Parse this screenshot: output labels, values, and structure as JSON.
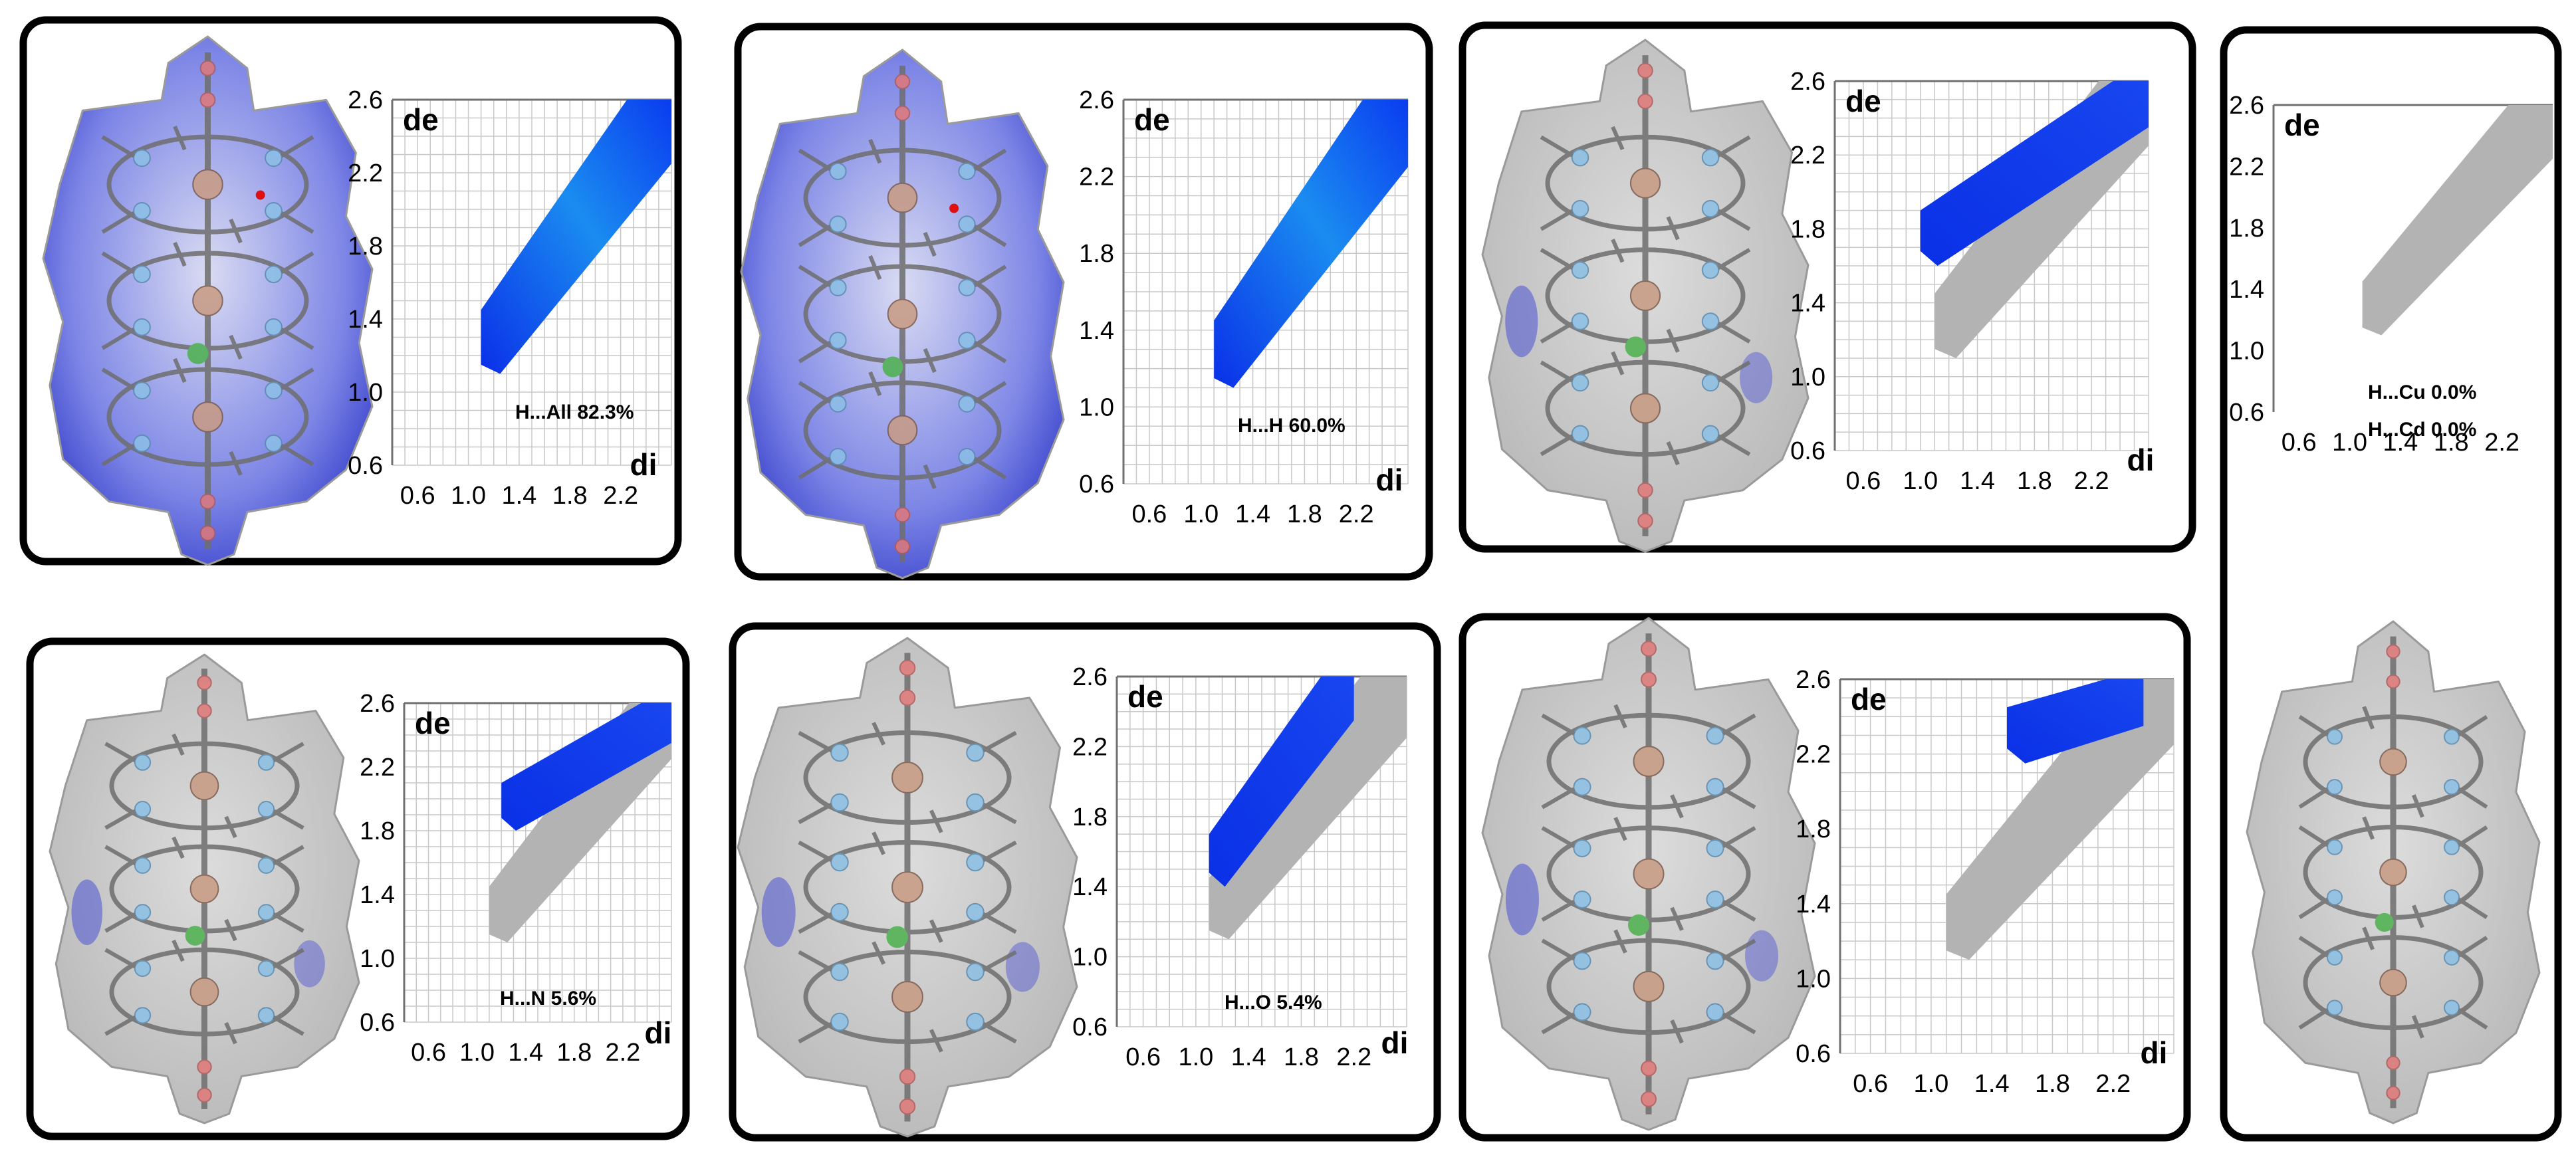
{
  "colors": {
    "frame": "#000000",
    "fingerprint_highlight": "#0a3cf0",
    "fingerprint_full": "#b3b3b3",
    "surface_gray": "#c8c8c8",
    "surface_blue": "#4b52d2",
    "grid": "#c8c8c8",
    "oxygen_atom": "#e07878",
    "nitrogen_atom": "#8cc0e6",
    "metal_atom": "#c89a82",
    "chloride_atom": "#4cb04c"
  },
  "icons": {
    "surface": "hirshfeld-surface-icon",
    "molecule": "molecule-icon"
  },
  "chart_data": [
    {
      "type": "scatter",
      "title": "",
      "xlabel": "di",
      "ylabel": "de",
      "xlim": [
        0.4,
        2.6
      ],
      "ylim": [
        0.6,
        2.6
      ],
      "xticks": [
        "0.6",
        "1.0",
        "1.4",
        "1.8",
        "2.2"
      ],
      "yticks": [
        "2.6",
        "2.2",
        "1.8",
        "1.4",
        "1.0",
        "0.6"
      ],
      "grid": true,
      "surface_coloring": "dnorm",
      "full_region": {
        "x_min": 1.1,
        "x_max": 2.6,
        "y_min": 1.1,
        "y_max": 2.6
      },
      "highlight_region": {
        "x_min": 1.1,
        "x_max": 2.6,
        "y_min": 1.1,
        "y_max": 2.6
      },
      "annotations": [
        "H...All 82.3%"
      ],
      "contact": "H...All",
      "percent": 82.3
    },
    {
      "type": "scatter",
      "title": "",
      "xlabel": "di",
      "ylabel": "de",
      "xlim": [
        0.4,
        2.6
      ],
      "ylim": [
        0.6,
        2.6
      ],
      "xticks": [
        "0.6",
        "1.0",
        "1.4",
        "1.8",
        "2.2"
      ],
      "yticks": [
        "2.6",
        "2.2",
        "1.8",
        "1.4",
        "1.0",
        "0.6"
      ],
      "grid": true,
      "surface_coloring": "dnorm",
      "full_region": {
        "x_min": 1.1,
        "x_max": 2.6,
        "y_min": 1.1,
        "y_max": 2.6
      },
      "highlight_region": {
        "x_min": 1.1,
        "x_max": 2.6,
        "y_min": 1.1,
        "y_max": 2.6
      },
      "annotations": [
        "H...H 60.0%"
      ],
      "contact": "H...H",
      "percent": 60.0
    },
    {
      "type": "scatter",
      "title": "",
      "xlabel": "di",
      "ylabel": "de",
      "xlim": [
        0.4,
        2.6
      ],
      "ylim": [
        0.6,
        2.6
      ],
      "xticks": [
        "0.6",
        "1.0",
        "1.4",
        "1.8",
        "2.2"
      ],
      "yticks": [
        "2.6",
        "2.2",
        "1.8",
        "1.4",
        "1.0",
        "0.6"
      ],
      "grid": true,
      "surface_coloring": "partial",
      "full_region": {
        "x_min": 1.1,
        "x_max": 2.6,
        "y_min": 1.1,
        "y_max": 2.6
      },
      "highlight_region": {
        "x_min": 1.0,
        "x_max": 2.6,
        "y_min": 1.6,
        "y_max": 2.6
      },
      "annotations": [],
      "contact": "",
      "percent": null
    },
    {
      "type": "scatter",
      "title": "",
      "xlabel": "",
      "ylabel": "de",
      "xlim": [
        0.4,
        2.6
      ],
      "ylim": [
        0.6,
        2.6
      ],
      "xticks": [
        "0.6",
        "1.0",
        "1.4",
        "1.8",
        "2.2"
      ],
      "yticks": [
        "2.6",
        "2.2",
        "1.8",
        "1.4",
        "1.0",
        "0.6"
      ],
      "grid": false,
      "surface_coloring": "gray",
      "full_region": {
        "x_min": 1.1,
        "x_max": 2.6,
        "y_min": 1.1,
        "y_max": 2.6
      },
      "highlight_region": null,
      "annotations": [
        "H...Cu 0.0%",
        "H...Cd 0.0%"
      ],
      "contact": "H...Cu / H...Cd",
      "percent": 0.0
    },
    {
      "type": "scatter",
      "title": "",
      "xlabel": "di",
      "ylabel": "de",
      "xlim": [
        0.4,
        2.6
      ],
      "ylim": [
        0.6,
        2.6
      ],
      "xticks": [
        "0.6",
        "1.0",
        "1.4",
        "1.8",
        "2.2"
      ],
      "yticks": [
        "2.6",
        "2.2",
        "1.8",
        "1.4",
        "1.0",
        "0.6"
      ],
      "grid": true,
      "surface_coloring": "partial",
      "full_region": {
        "x_min": 1.1,
        "x_max": 2.6,
        "y_min": 1.1,
        "y_max": 2.6
      },
      "highlight_region": {
        "x_min": 1.2,
        "x_max": 2.6,
        "y_min": 1.8,
        "y_max": 2.6
      },
      "annotations": [
        "H...N 5.6%"
      ],
      "contact": "H...N",
      "percent": 5.6
    },
    {
      "type": "scatter",
      "title": "",
      "xlabel": "di",
      "ylabel": "de",
      "xlim": [
        0.4,
        2.6
      ],
      "ylim": [
        0.6,
        2.6
      ],
      "xticks": [
        "0.6",
        "1.0",
        "1.4",
        "1.8",
        "2.2"
      ],
      "yticks": [
        "2.6",
        "2.2",
        "1.8",
        "1.4",
        "1.0",
        "0.6"
      ],
      "grid": true,
      "surface_coloring": "partial",
      "full_region": {
        "x_min": 1.1,
        "x_max": 2.6,
        "y_min": 1.1,
        "y_max": 2.6
      },
      "highlight_region": {
        "x_min": 1.1,
        "x_max": 2.2,
        "y_min": 1.4,
        "y_max": 2.6
      },
      "annotations": [
        "H...O 5.4%"
      ],
      "contact": "H...O",
      "percent": 5.4
    },
    {
      "type": "scatter",
      "title": "",
      "xlabel": "di",
      "ylabel": "de",
      "xlim": [
        0.4,
        2.6
      ],
      "ylim": [
        0.6,
        2.6
      ],
      "xticks": [
        "0.6",
        "1.0",
        "1.4",
        "1.8",
        "2.2"
      ],
      "yticks": [
        "2.6",
        "2.2",
        "1.8",
        "1.4",
        "1.0",
        "0.6"
      ],
      "grid": true,
      "surface_coloring": "partial",
      "full_region": {
        "x_min": 1.1,
        "x_max": 2.6,
        "y_min": 1.1,
        "y_max": 2.6
      },
      "highlight_region": {
        "x_min": 1.5,
        "x_max": 2.4,
        "y_min": 2.15,
        "y_max": 2.6
      },
      "annotations": [],
      "contact": "",
      "percent": null
    }
  ]
}
